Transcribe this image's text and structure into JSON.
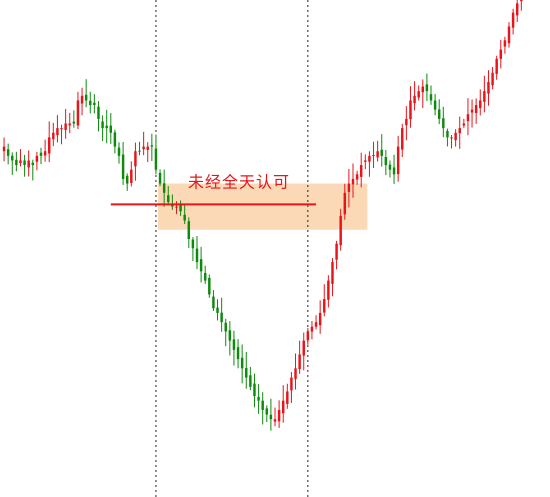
{
  "chart_data": {
    "type": "candlestick",
    "title": "",
    "xlabel": "",
    "ylabel": "",
    "ylim": [
      0,
      100
    ],
    "grid": false,
    "colors": {
      "up": "#e8141a",
      "down": "#0c8a0c",
      "zone_fill": "#fcd9b6",
      "level_line": "#e8141a",
      "separator": "#222222"
    },
    "annotation": {
      "text": "未经全天认可"
    },
    "zone": {
      "x_start": 38,
      "x_end": 88,
      "y_low": 52,
      "y_high": 62
    },
    "level": {
      "x_start": 26,
      "x_end": 76,
      "y": 57.5
    },
    "separators_x": [
      37,
      74
    ],
    "closes": [
      70,
      68,
      67,
      66,
      67,
      66,
      67,
      66,
      68,
      68,
      69,
      72,
      73,
      74,
      74,
      75,
      75,
      75,
      80,
      81,
      80,
      79,
      79,
      76,
      74,
      74,
      73,
      70,
      68,
      63,
      62,
      65,
      69,
      69,
      70,
      70,
      70,
      65,
      62,
      60,
      58,
      57,
      57,
      56,
      54,
      50,
      48,
      45,
      43,
      41,
      38,
      35,
      34,
      32,
      30,
      28,
      26,
      24,
      22,
      20,
      18,
      16,
      15,
      13,
      12,
      11,
      11,
      13,
      15,
      17,
      20,
      22,
      25,
      28,
      30,
      31,
      32,
      34,
      37,
      41,
      45,
      49,
      55,
      60,
      62,
      63,
      64,
      66,
      67,
      68,
      68,
      69,
      68,
      66,
      65,
      64,
      70,
      74,
      76,
      80,
      81,
      82,
      83,
      82,
      80,
      78,
      76,
      74,
      72,
      72,
      73,
      74,
      75,
      77,
      78,
      79,
      80,
      82,
      84,
      86,
      89,
      91,
      93,
      96,
      99,
      101,
      104,
      106,
      107,
      108,
      108,
      107,
      106
    ]
  }
}
